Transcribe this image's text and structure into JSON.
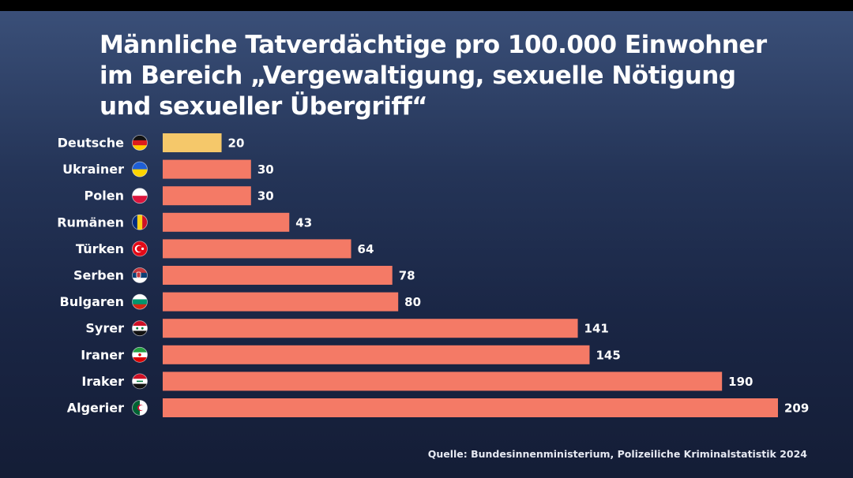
{
  "title_lines": [
    "Männliche Tatverdächtige pro 100.000 Einwohner",
    "im Bereich „Vergewaltigung, sexuelle Nötigung",
    "und sexueller Übergriff“"
  ],
  "source": "Quelle: Bundesinnenministerium, Polizeiliche Kriminalstatistik 2024",
  "colors": {
    "highlight_bar": "#f5c86a",
    "bar": "#f47a66",
    "background_top": "#3a4f78",
    "background_bottom": "#141d36",
    "text": "#ffffff"
  },
  "chart_data": {
    "type": "bar",
    "orientation": "horizontal",
    "title": "Männliche Tatverdächtige pro 100.000 Einwohner im Bereich „Vergewaltigung, sexuelle Nötigung und sexueller Übergriff“",
    "categories": [
      "Deutsche",
      "Ukrainer",
      "Polen",
      "Rumänen",
      "Türken",
      "Serben",
      "Bulgaren",
      "Syrer",
      "Iraner",
      "Iraker",
      "Algerier"
    ],
    "values": [
      20,
      30,
      30,
      43,
      64,
      78,
      80,
      141,
      145,
      190,
      209
    ],
    "flags": [
      "germany-flag",
      "ukraine-flag",
      "poland-flag",
      "romania-flag",
      "turkey-flag",
      "serbia-flag",
      "bulgaria-flag",
      "syria-flag",
      "iran-flag",
      "iraq-flag",
      "algeria-flag"
    ],
    "highlight_index": 0,
    "xlim": [
      0,
      209
    ],
    "grid": false,
    "xlabel": "",
    "ylabel": ""
  }
}
